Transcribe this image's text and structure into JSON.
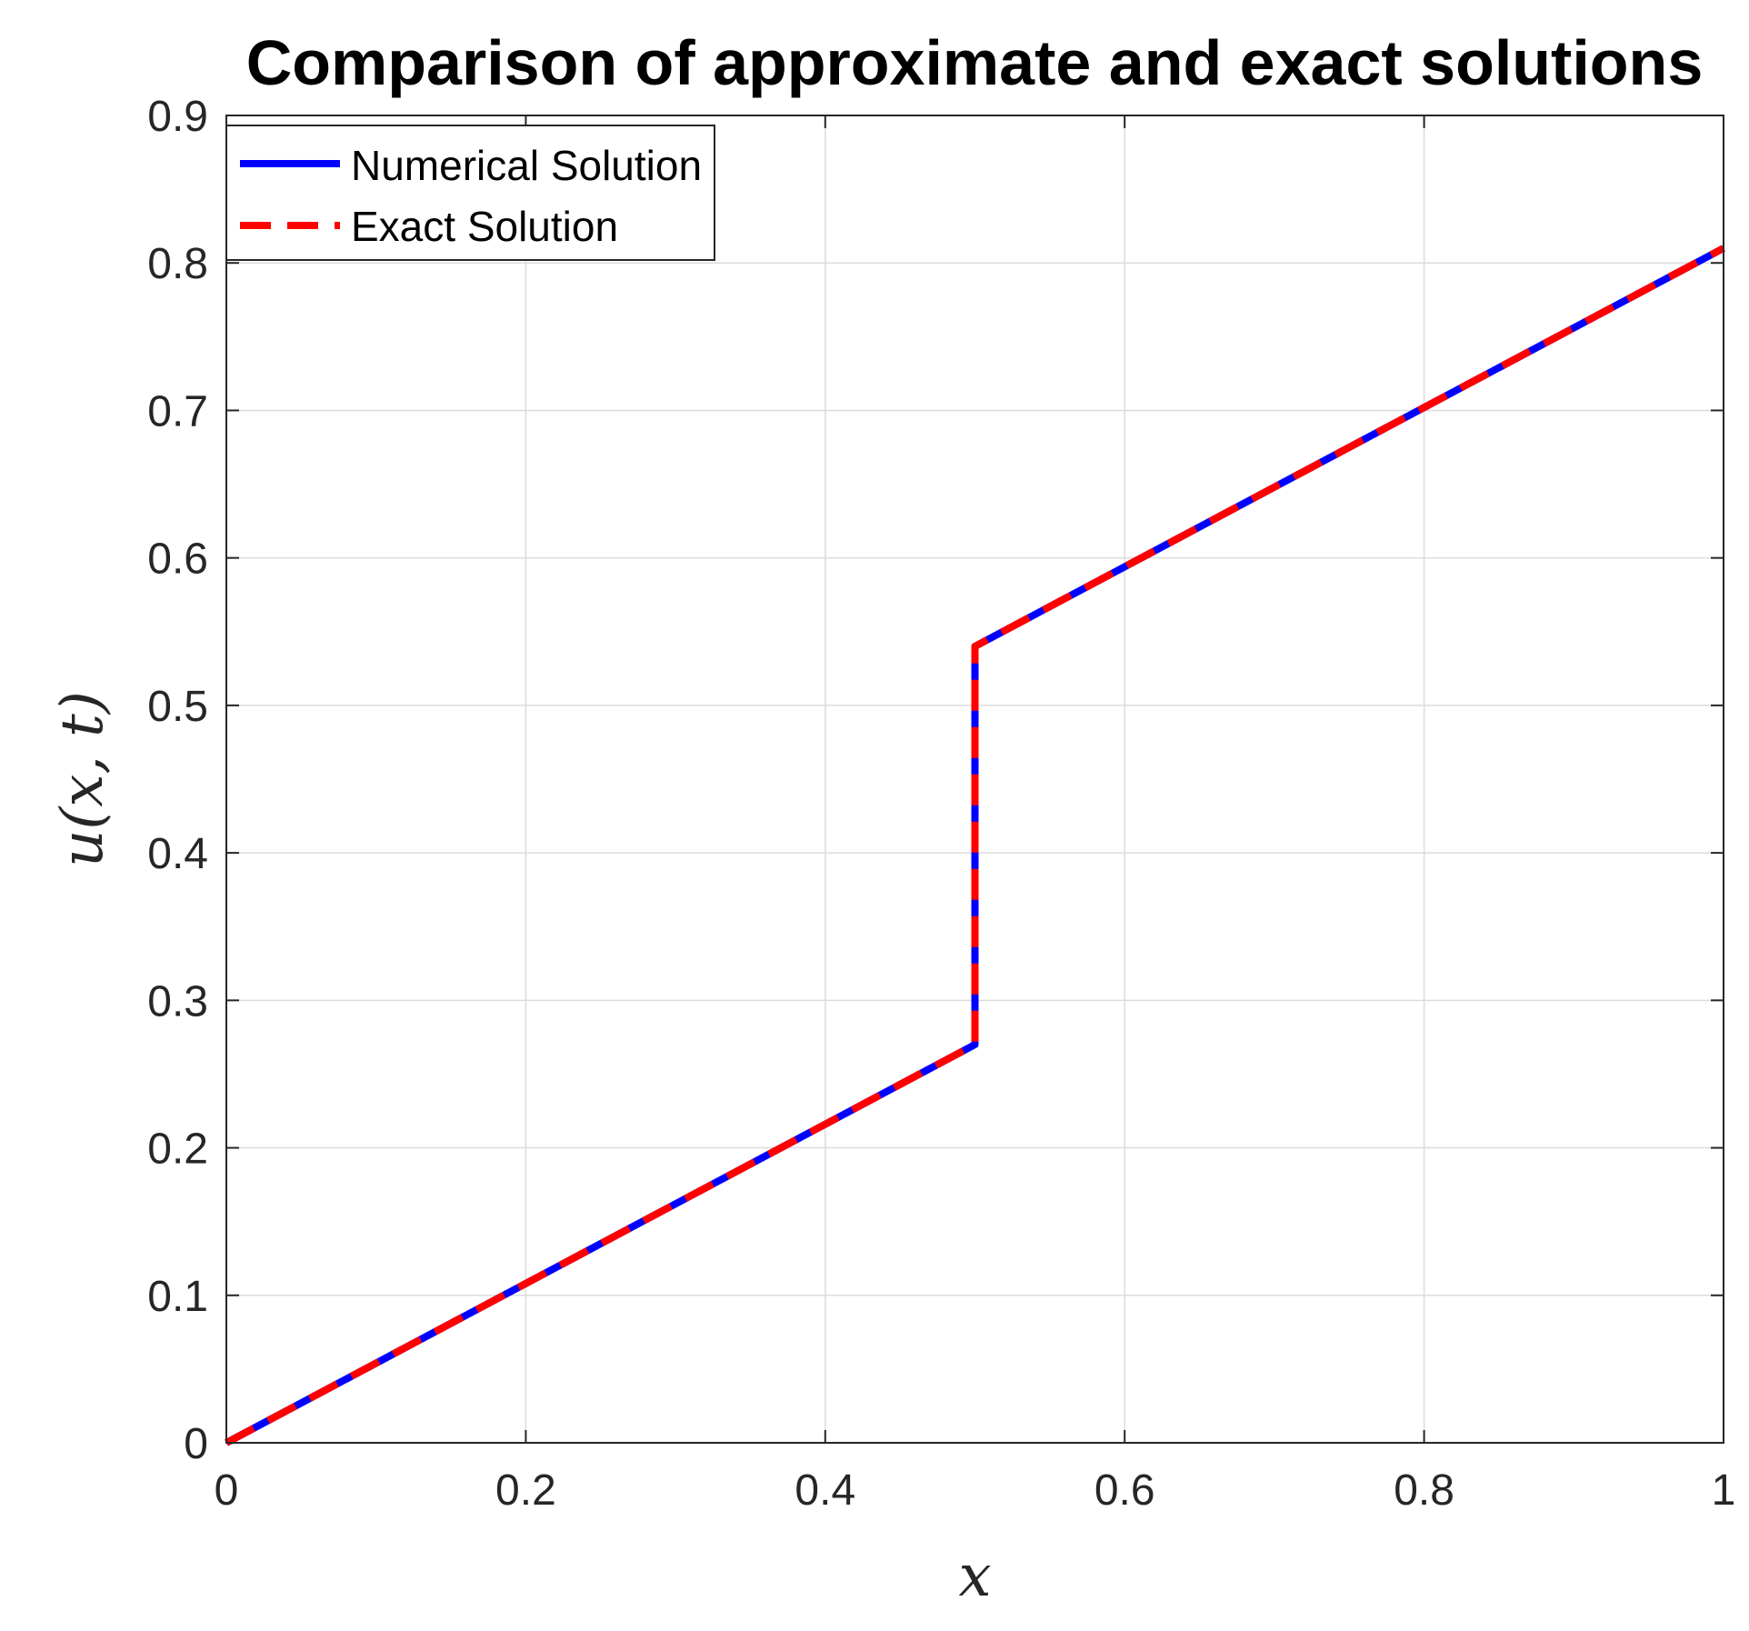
{
  "chart_data": {
    "type": "line",
    "title": "Comparison of approximate and exact solutions",
    "xlabel": "x",
    "ylabel": "u(x, t)",
    "xlim": [
      0,
      1
    ],
    "ylim": [
      0,
      0.9
    ],
    "xticks": [
      "0",
      "0.2",
      "0.4",
      "0.6",
      "0.8",
      "1"
    ],
    "yticks": [
      "0",
      "0.1",
      "0.2",
      "0.3",
      "0.4",
      "0.5",
      "0.6",
      "0.7",
      "0.8",
      "0.9"
    ],
    "grid": true,
    "legend_position": "top-left",
    "series": [
      {
        "name": "Numerical Solution",
        "color": "#0000ff",
        "style": "solid",
        "x": [
          0,
          0.5,
          0.5,
          1
        ],
        "y": [
          0,
          0.27,
          0.54,
          0.81
        ]
      },
      {
        "name": "Exact Solution",
        "color": "#ff0000",
        "style": "dashed",
        "x": [
          0,
          0.5,
          0.5,
          1
        ],
        "y": [
          0,
          0.27,
          0.54,
          0.81
        ]
      }
    ]
  }
}
